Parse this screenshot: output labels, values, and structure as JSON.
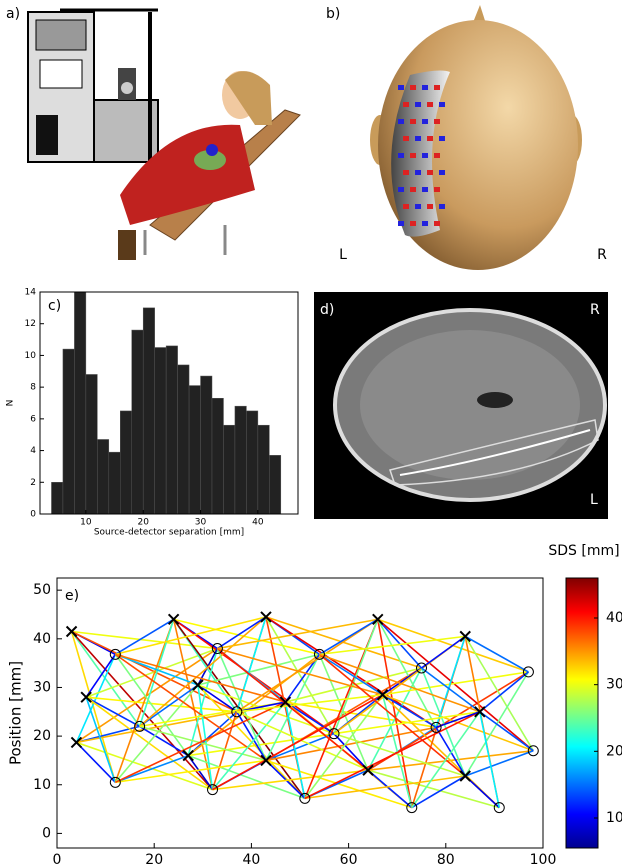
{
  "panels": {
    "a": "a)",
    "b": "b)",
    "b_left": "L",
    "b_right": "R",
    "d": "d)",
    "d_top": "R",
    "d_bottom": "L"
  },
  "chart_data": [
    {
      "type": "histogram",
      "panel": "c)",
      "xlabel": "Source-detector separation [mm]",
      "ylabel": "N",
      "color": "#222222",
      "bins": [
        4,
        6,
        8,
        10,
        12,
        14,
        16,
        18,
        20,
        22,
        24,
        26,
        28,
        30,
        32,
        34,
        36,
        38,
        40,
        42,
        44
      ],
      "values": [
        2,
        10.4,
        14,
        8.8,
        4.7,
        3.9,
        6.5,
        11.6,
        13,
        10.5,
        10.6,
        9.4,
        8.1,
        8.7,
        7.3,
        5.6,
        6.8,
        6.5,
        5.6,
        3.7
      ],
      "xlim": [
        2,
        47
      ],
      "xticks": [
        10,
        20,
        30,
        40
      ],
      "ylim": [
        0,
        14
      ],
      "yticks": [
        0,
        2,
        4,
        6,
        8,
        10,
        12,
        14
      ]
    },
    {
      "type": "scatter",
      "panel": "e)",
      "ylabel": "Position [mm]",
      "sources_x": [
        3,
        4,
        6,
        24,
        27,
        29,
        43,
        43,
        47,
        64,
        66,
        67,
        84,
        84,
        87
      ],
      "sources_y": [
        41.5,
        18.7,
        28,
        44,
        16,
        30.5,
        44.5,
        15,
        27,
        13,
        44,
        28.5,
        40.5,
        11.8,
        25
      ],
      "detectors_x": [
        12,
        12,
        17,
        32,
        33,
        37,
        51,
        54,
        57,
        73,
        75,
        78,
        91,
        97,
        98
      ],
      "detectors_y": [
        10.5,
        36.8,
        22,
        9,
        38,
        25,
        7.2,
        36.8,
        20.5,
        5.3,
        34,
        21.8,
        5.3,
        33.2,
        17
      ],
      "xlim": [
        0,
        100
      ],
      "xticks": [
        0,
        20,
        40,
        60,
        80,
        100
      ],
      "ylim": [
        -3,
        52.5
      ],
      "yticks": [
        0,
        10,
        20,
        30,
        40,
        50
      ],
      "colorbar": {
        "label": "SDS [mm]",
        "lim": [
          5.5,
          46
        ],
        "ticks": [
          10,
          20,
          30,
          40
        ]
      }
    }
  ]
}
